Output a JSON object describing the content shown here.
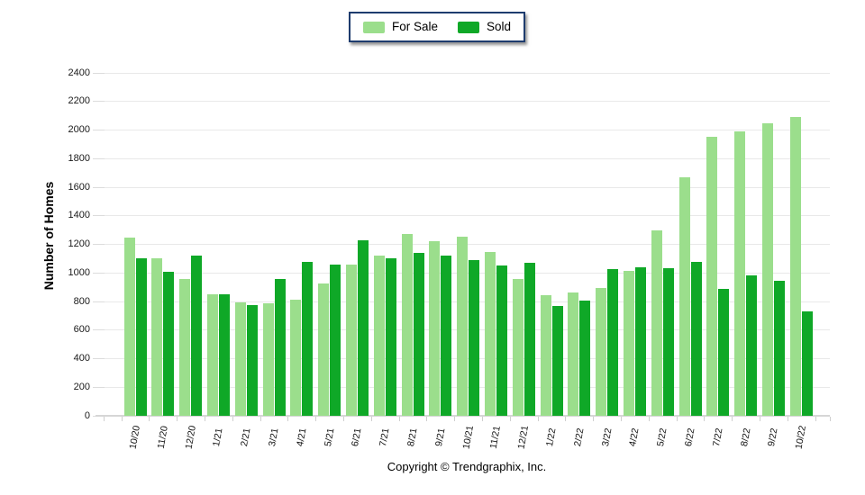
{
  "legend": {
    "items": [
      {
        "label": "For Sale",
        "color": "#9bde8c"
      },
      {
        "label": "Sold",
        "color": "#0fa827"
      }
    ]
  },
  "footer": "Copyright © Trendgraphix, Inc.",
  "chart_data": {
    "type": "bar",
    "title": "",
    "xlabel": "",
    "ylabel": "Number of Homes",
    "categories": [
      "10/20",
      "11/20",
      "12/20",
      "1/21",
      "2/21",
      "3/21",
      "4/21",
      "5/21",
      "6/21",
      "7/21",
      "8/21",
      "9/21",
      "10/21",
      "11/21",
      "12/21",
      "1/22",
      "2/22",
      "3/22",
      "4/22",
      "5/22",
      "6/22",
      "7/22",
      "8/22",
      "9/22",
      "10/22"
    ],
    "series": [
      {
        "name": "For Sale",
        "color": "#9bde8c",
        "values": [
          1245,
          1105,
          960,
          850,
          795,
          790,
          810,
          925,
          1060,
          1120,
          1270,
          1220,
          1255,
          1145,
          955,
          845,
          860,
          895,
          1015,
          1295,
          1670,
          1955,
          1990,
          2045,
          2090
        ]
      },
      {
        "name": "Sold",
        "color": "#0fa827",
        "values": [
          1105,
          1010,
          1120,
          850,
          775,
          960,
          1080,
          1060,
          1230,
          1100,
          1140,
          1120,
          1090,
          1050,
          1070,
          770,
          805,
          1025,
          1040,
          1030,
          1075,
          890,
          985,
          945,
          730
        ]
      }
    ],
    "ylim": [
      0,
      2400
    ],
    "ytick_step": 200,
    "grid": true,
    "legend_position": "top-center"
  }
}
